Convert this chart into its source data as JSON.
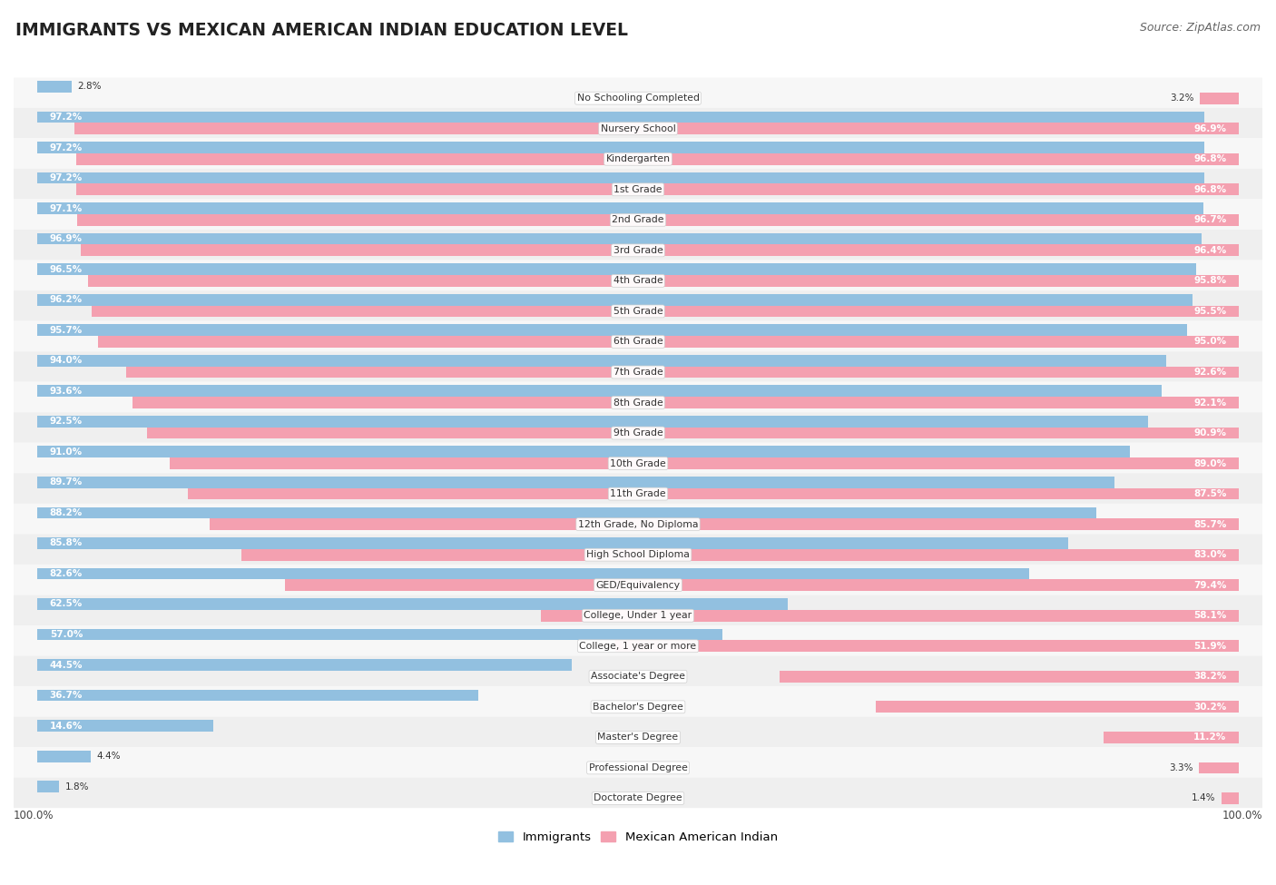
{
  "title": "IMMIGRANTS VS MEXICAN AMERICAN INDIAN EDUCATION LEVEL",
  "source": "Source: ZipAtlas.com",
  "categories": [
    "No Schooling Completed",
    "Nursery School",
    "Kindergarten",
    "1st Grade",
    "2nd Grade",
    "3rd Grade",
    "4th Grade",
    "5th Grade",
    "6th Grade",
    "7th Grade",
    "8th Grade",
    "9th Grade",
    "10th Grade",
    "11th Grade",
    "12th Grade, No Diploma",
    "High School Diploma",
    "GED/Equivalency",
    "College, Under 1 year",
    "College, 1 year or more",
    "Associate's Degree",
    "Bachelor's Degree",
    "Master's Degree",
    "Professional Degree",
    "Doctorate Degree"
  ],
  "immigrants": [
    2.8,
    97.2,
    97.2,
    97.2,
    97.1,
    96.9,
    96.5,
    96.2,
    95.7,
    94.0,
    93.6,
    92.5,
    91.0,
    89.7,
    88.2,
    85.8,
    82.6,
    62.5,
    57.0,
    44.5,
    36.7,
    14.6,
    4.4,
    1.8
  ],
  "mexican": [
    3.2,
    96.9,
    96.8,
    96.8,
    96.7,
    96.4,
    95.8,
    95.5,
    95.0,
    92.6,
    92.1,
    90.9,
    89.0,
    87.5,
    85.7,
    83.0,
    79.4,
    58.1,
    51.9,
    38.2,
    30.2,
    11.2,
    3.3,
    1.4
  ],
  "blue_color": "#92c0e0",
  "pink_color": "#f4a0b0",
  "bg_color_light": "#f7f7f7",
  "bg_color_dark": "#efefef"
}
